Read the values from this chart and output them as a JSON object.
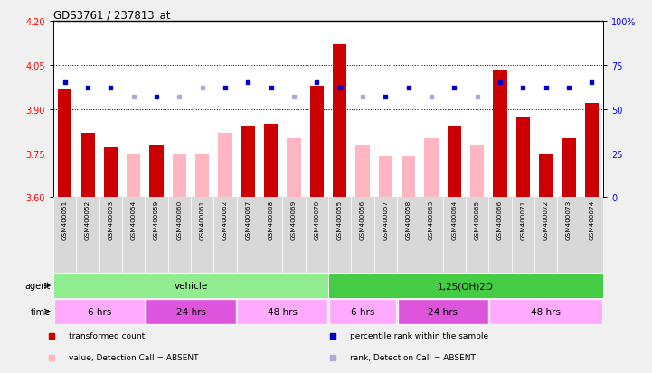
{
  "title": "GDS3761 / 237813_at",
  "samples": [
    "GSM400051",
    "GSM400052",
    "GSM400053",
    "GSM400054",
    "GSM400059",
    "GSM400060",
    "GSM400061",
    "GSM400062",
    "GSM400067",
    "GSM400068",
    "GSM400069",
    "GSM400070",
    "GSM400055",
    "GSM400056",
    "GSM400057",
    "GSM400058",
    "GSM400063",
    "GSM400064",
    "GSM400065",
    "GSM400066",
    "GSM400071",
    "GSM400072",
    "GSM400073",
    "GSM400074"
  ],
  "bar_values": [
    3.97,
    3.82,
    3.77,
    null,
    3.78,
    null,
    null,
    null,
    3.84,
    3.85,
    null,
    3.98,
    4.12,
    null,
    null,
    null,
    null,
    3.84,
    null,
    4.03,
    3.87,
    3.75,
    3.8,
    3.92
  ],
  "absent_bar_values": [
    null,
    null,
    null,
    3.75,
    null,
    3.75,
    3.75,
    3.82,
    null,
    null,
    3.8,
    null,
    null,
    3.78,
    3.74,
    3.74,
    3.8,
    null,
    3.78,
    null,
    null,
    null,
    null,
    null
  ],
  "rank_values": [
    65,
    62,
    62,
    57,
    57,
    57,
    62,
    62,
    65,
    62,
    57,
    65,
    62,
    57,
    57,
    62,
    57,
    62,
    57,
    65,
    62,
    62,
    62,
    65
  ],
  "absent_rank": [
    false,
    false,
    false,
    true,
    false,
    true,
    true,
    false,
    false,
    false,
    true,
    false,
    false,
    true,
    false,
    false,
    true,
    false,
    true,
    false,
    false,
    false,
    false,
    false
  ],
  "ylim_left": [
    3.6,
    4.2
  ],
  "ylim_right": [
    0,
    100
  ],
  "yticks_left": [
    3.6,
    3.75,
    3.9,
    4.05,
    4.2
  ],
  "yticks_right": [
    0,
    25,
    50,
    75,
    100
  ],
  "hlines": [
    3.75,
    3.9,
    4.05
  ],
  "agent_groups": [
    {
      "label": "vehicle",
      "start": 0,
      "end": 12,
      "color": "#90EE90"
    },
    {
      "label": "1,25(OH)2D",
      "start": 12,
      "end": 24,
      "color": "#44CC44"
    }
  ],
  "time_groups": [
    {
      "label": "6 hrs",
      "start": 0,
      "end": 4,
      "color": "#FFAAFF"
    },
    {
      "label": "24 hrs",
      "start": 4,
      "end": 8,
      "color": "#DD55DD"
    },
    {
      "label": "48 hrs",
      "start": 8,
      "end": 12,
      "color": "#FFAAFF"
    },
    {
      "label": "6 hrs",
      "start": 12,
      "end": 15,
      "color": "#FFAAFF"
    },
    {
      "label": "24 hrs",
      "start": 15,
      "end": 19,
      "color": "#DD55DD"
    },
    {
      "label": "48 hrs",
      "start": 19,
      "end": 24,
      "color": "#FFAAFF"
    }
  ],
  "bar_color": "#CC0000",
  "absent_bar_color": "#FFB6C1",
  "rank_color_present": "#0000CC",
  "rank_color_absent": "#AAAADD",
  "bg_gray": "#D8D8D8",
  "bg_white": "#FFFFFF",
  "bg_fig": "#F0F0F0"
}
